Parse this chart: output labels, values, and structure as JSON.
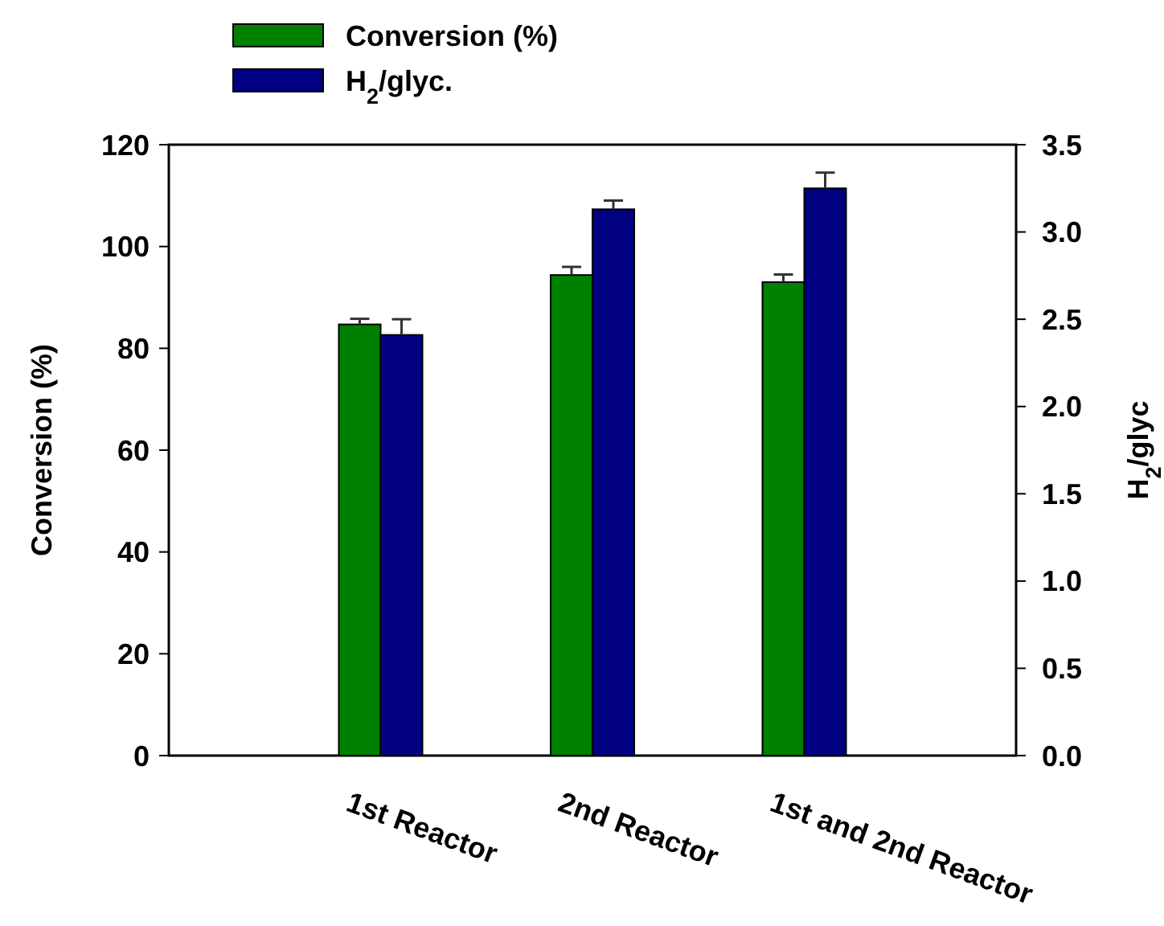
{
  "chart_data": {
    "type": "bar",
    "categories": [
      "1st Reactor",
      "2nd Reactor",
      "1st and 2nd Reactor"
    ],
    "ylabel": "Conversion (%)",
    "y2label": "H$_{2}$/glyc",
    "ylim": [
      0,
      120
    ],
    "yticks": [
      0,
      20,
      40,
      60,
      80,
      100,
      120
    ],
    "y2lim": [
      0,
      3.5
    ],
    "y2ticks": [
      {
        "value": 0,
        "label": "0.0"
      },
      {
        "value": 0.5,
        "label": "0.5"
      },
      {
        "value": 1,
        "label": "1.0"
      },
      {
        "value": 1.5,
        "label": "1.5"
      },
      {
        "value": 2,
        "label": "2.0"
      },
      {
        "value": 2.5,
        "label": "2.5"
      },
      {
        "value": 3,
        "label": "3.0"
      },
      {
        "value": 3.5,
        "label": "3.5"
      }
    ],
    "legend": "top left",
    "series": [
      {
        "name": "Conversion (%)",
        "color": "#008000",
        "values": [
          84.7,
          94.4,
          93.0
        ],
        "errors": [
          1.1,
          1.6,
          1.5
        ]
      },
      {
        "name": "H$_{2}$/glyc.",
        "color": "#000080",
        "values": [
          2.41,
          3.13,
          3.25
        ],
        "errors": [
          0.09,
          0.05,
          0.09
        ],
        "axis": "y2"
      }
    ]
  }
}
